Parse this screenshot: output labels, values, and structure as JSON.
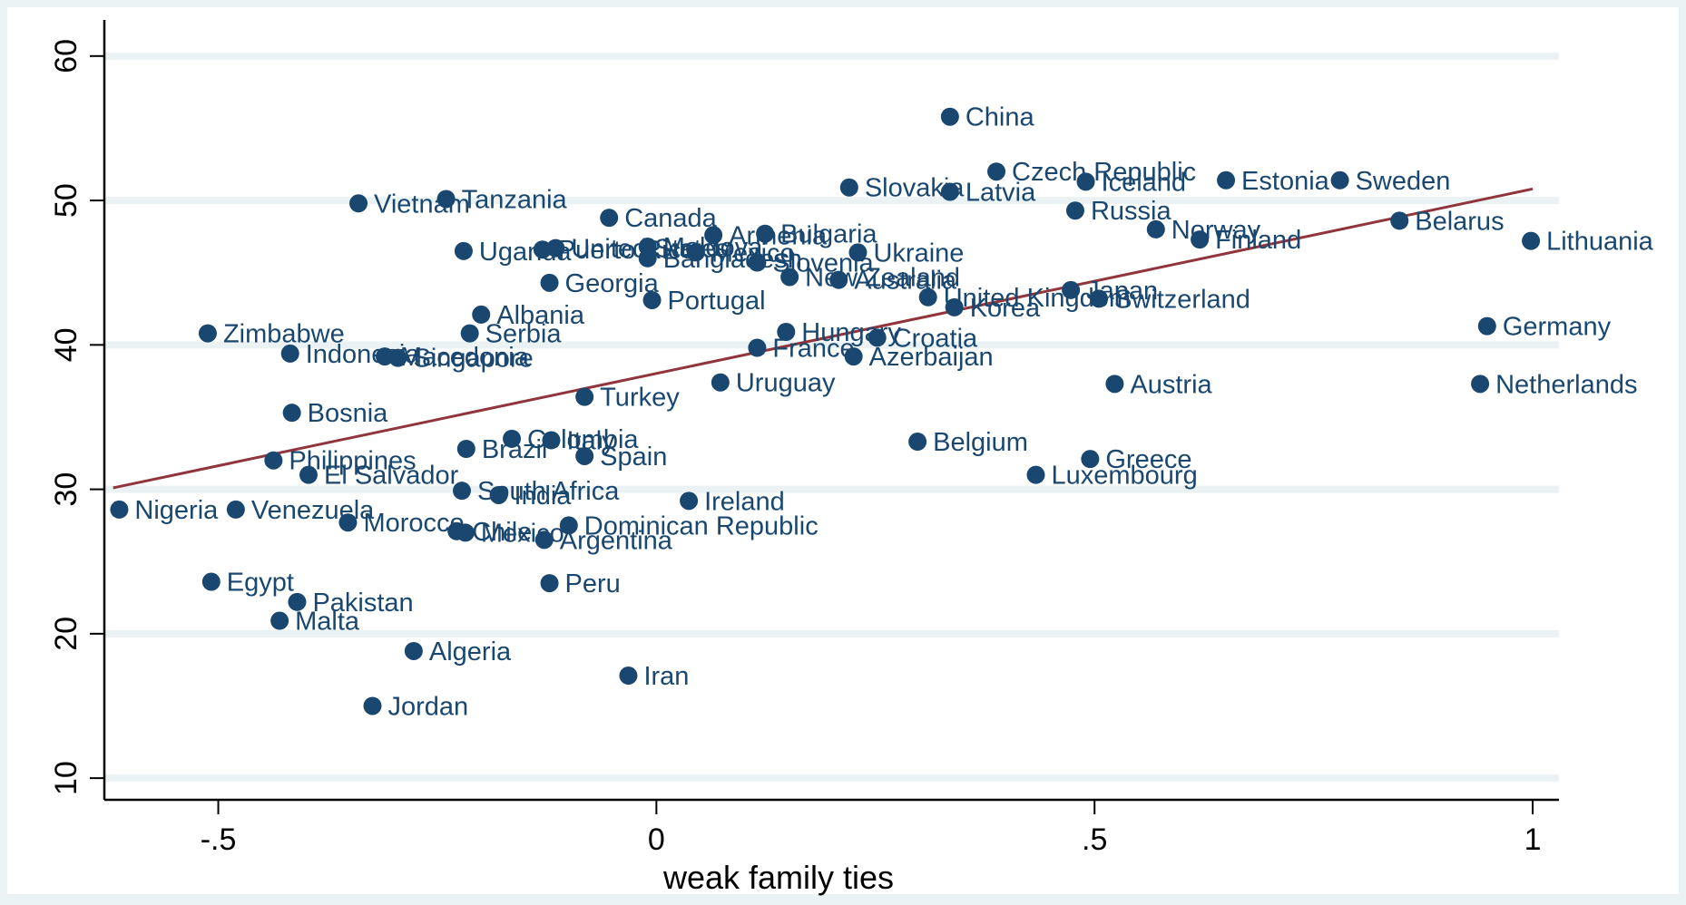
{
  "colors": {
    "background": "#eaf2f3",
    "plot_background": "#ffffff",
    "grid": "#eaf2f3",
    "marker": "#1a476f",
    "label": "#1a476f",
    "fit_line": "#90353b",
    "axis": "#000000",
    "axis_text": "#000000"
  },
  "chart_data": {
    "type": "scatter",
    "title": "",
    "xlabel": "weak family ties",
    "ylabel": "",
    "xlim": [
      -0.63,
      1.03
    ],
    "ylim": [
      8.5,
      62.5
    ],
    "xticks": [
      -0.5,
      0,
      0.5,
      1
    ],
    "xtick_labels": [
      "-.5",
      "0",
      ".5",
      "1"
    ],
    "yticks": [
      10,
      20,
      30,
      40,
      50,
      60
    ],
    "ytick_labels": [
      "10",
      "20",
      "30",
      "40",
      "50",
      "60"
    ],
    "grid": true,
    "legend": "none",
    "fit_line": {
      "x": [
        -0.62,
        1.0
      ],
      "y": [
        30.1,
        50.8
      ]
    },
    "points": [
      {
        "label": "China",
        "x": 0.335,
        "y": 55.8
      },
      {
        "label": "Czech Republic",
        "x": 0.388,
        "y": 52.0
      },
      {
        "label": "Iceland",
        "x": 0.49,
        "y": 51.3
      },
      {
        "label": "Estonia",
        "x": 0.65,
        "y": 51.4
      },
      {
        "label": "Sweden",
        "x": 0.78,
        "y": 51.4
      },
      {
        "label": "Slovakia",
        "x": 0.22,
        "y": 50.9
      },
      {
        "label": "Latvia",
        "x": 0.335,
        "y": 50.6
      },
      {
        "label": "Vietnam",
        "x": -0.34,
        "y": 49.8
      },
      {
        "label": "Tanzania",
        "x": -0.24,
        "y": 50.1
      },
      {
        "label": "Russia",
        "x": 0.478,
        "y": 49.3
      },
      {
        "label": "Norway",
        "x": 0.57,
        "y": 48.0
      },
      {
        "label": "Finland",
        "x": 0.62,
        "y": 47.3
      },
      {
        "label": "Belarus",
        "x": 0.848,
        "y": 48.6
      },
      {
        "label": "Lithuania",
        "x": 0.998,
        "y": 47.2
      },
      {
        "label": "Canada",
        "x": -0.054,
        "y": 48.8
      },
      {
        "label": "Armenia",
        "x": 0.065,
        "y": 47.6
      },
      {
        "label": "Bulgaria",
        "x": 0.124,
        "y": 47.7
      },
      {
        "label": "Uganda",
        "x": -0.22,
        "y": 46.5
      },
      {
        "label": "Puerto Rico",
        "x": -0.13,
        "y": 46.6
      },
      {
        "label": "United States",
        "x": -0.115,
        "y": 46.7
      },
      {
        "label": "Moldova",
        "x": -0.01,
        "y": 46.8
      },
      {
        "label": "Mexico",
        "x": 0.045,
        "y": 46.4
      },
      {
        "label": "Bangladesh",
        "x": -0.01,
        "y": 46.0
      },
      {
        "label": "Slovenia",
        "x": 0.115,
        "y": 45.7
      },
      {
        "label": "Ukraine",
        "x": 0.23,
        "y": 46.4
      },
      {
        "label": "Georgia",
        "x": -0.122,
        "y": 44.3
      },
      {
        "label": "New Zealand",
        "x": 0.152,
        "y": 44.7
      },
      {
        "label": "Australia",
        "x": 0.208,
        "y": 44.5
      },
      {
        "label": "Portugal",
        "x": -0.005,
        "y": 43.1
      },
      {
        "label": "Albania",
        "x": -0.2,
        "y": 42.1
      },
      {
        "label": "Korea",
        "x": 0.34,
        "y": 42.6
      },
      {
        "label": "United Kingdom",
        "x": 0.31,
        "y": 43.3
      },
      {
        "label": "Japan",
        "x": 0.473,
        "y": 43.8
      },
      {
        "label": "Switzerland",
        "x": 0.505,
        "y": 43.2
      },
      {
        "label": "Germany",
        "x": 0.948,
        "y": 41.3
      },
      {
        "label": "Zimbabwe",
        "x": -0.512,
        "y": 40.8
      },
      {
        "label": "Serbia",
        "x": -0.213,
        "y": 40.8
      },
      {
        "label": "Hungary",
        "x": 0.148,
        "y": 40.9
      },
      {
        "label": "Croatia",
        "x": 0.252,
        "y": 40.5
      },
      {
        "label": "France",
        "x": 0.115,
        "y": 39.8
      },
      {
        "label": "Azerbaijan",
        "x": 0.225,
        "y": 39.2
      },
      {
        "label": "Indonesia",
        "x": -0.418,
        "y": 39.4
      },
      {
        "label": "Macedonia",
        "x": -0.31,
        "y": 39.2
      },
      {
        "label": "Singapore",
        "x": -0.295,
        "y": 39.1
      },
      {
        "label": "Uruguay",
        "x": 0.073,
        "y": 37.4
      },
      {
        "label": "Austria",
        "x": 0.523,
        "y": 37.3
      },
      {
        "label": "Netherlands",
        "x": 0.94,
        "y": 37.3
      },
      {
        "label": "Turkey",
        "x": -0.082,
        "y": 36.4
      },
      {
        "label": "Bosnia",
        "x": -0.416,
        "y": 35.3
      },
      {
        "label": "Belgium",
        "x": 0.298,
        "y": 33.3
      },
      {
        "label": "Colombia",
        "x": -0.165,
        "y": 33.5
      },
      {
        "label": "Italy",
        "x": -0.12,
        "y": 33.4
      },
      {
        "label": "Brazil",
        "x": -0.217,
        "y": 32.8
      },
      {
        "label": "Spain",
        "x": -0.082,
        "y": 32.3
      },
      {
        "label": "Philippines",
        "x": -0.437,
        "y": 32.0
      },
      {
        "label": "Greece",
        "x": 0.495,
        "y": 32.1
      },
      {
        "label": "El Salvador",
        "x": -0.397,
        "y": 31.0
      },
      {
        "label": "Luxembourg",
        "x": 0.433,
        "y": 31.0
      },
      {
        "label": "South Africa",
        "x": -0.222,
        "y": 29.9
      },
      {
        "label": "India",
        "x": -0.18,
        "y": 29.6
      },
      {
        "label": "Ireland",
        "x": 0.037,
        "y": 29.2
      },
      {
        "label": "Nigeria",
        "x": -0.613,
        "y": 28.6
      },
      {
        "label": "Venezuela",
        "x": -0.48,
        "y": 28.6
      },
      {
        "label": "Morocco",
        "x": -0.352,
        "y": 27.7
      },
      {
        "label": "Chile",
        "x": -0.228,
        "y": 27.1
      },
      {
        "label": "Mexico",
        "x": -0.218,
        "y": 27.0
      },
      {
        "label": "Dominican Republic",
        "x": -0.1,
        "y": 27.5
      },
      {
        "label": "Argentina",
        "x": -0.128,
        "y": 26.5
      },
      {
        "label": "Egypt",
        "x": -0.508,
        "y": 23.6
      },
      {
        "label": "Peru",
        "x": -0.122,
        "y": 23.5
      },
      {
        "label": "Pakistan",
        "x": -0.41,
        "y": 22.2
      },
      {
        "label": "Malta",
        "x": -0.43,
        "y": 20.9
      },
      {
        "label": "Algeria",
        "x": -0.277,
        "y": 18.8
      },
      {
        "label": "Iran",
        "x": -0.032,
        "y": 17.1
      },
      {
        "label": "Jordan",
        "x": -0.324,
        "y": 15.0
      }
    ]
  }
}
